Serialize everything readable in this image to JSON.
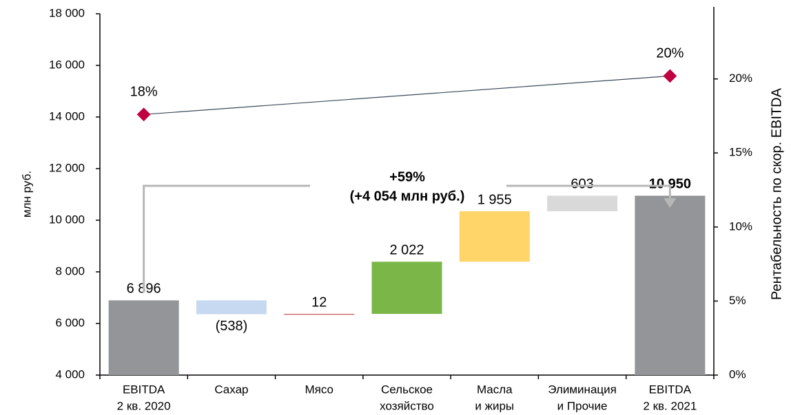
{
  "chart_data": {
    "type": "waterfall",
    "y_label": "млн руб.",
    "y2_label": "Рентабельность по скор. EBITDA",
    "categories": [
      [
        "EBITDA",
        "2 кв. 2020"
      ],
      [
        "Сахар"
      ],
      [
        "Мясо"
      ],
      [
        "Сельское",
        "хозяйство"
      ],
      [
        "Масла",
        "и жиры"
      ],
      [
        "Элиминация",
        "и Прочие"
      ],
      [
        "EBITDA",
        "2 кв. 2021"
      ]
    ],
    "values": [
      6896,
      -538,
      12,
      2022,
      1955,
      603,
      10950
    ],
    "value_labels": [
      "6 896",
      "(538)",
      "12",
      "2 022",
      "1 955",
      "603",
      "10 950"
    ],
    "totals": [
      true,
      false,
      false,
      false,
      false,
      false,
      true
    ],
    "colors": [
      "#939598",
      "#c6d9f0",
      "#c0504d",
      "#7ab648",
      "#ffd56a",
      "#d9d9d9",
      "#939598"
    ],
    "negative_label_color": "#c0504d",
    "ylim": [
      4000,
      18000
    ],
    "yticks": [
      {
        "value": 4000,
        "label": "4 000"
      },
      {
        "value": 6000,
        "label": "6 000"
      },
      {
        "value": 8000,
        "label": "8 000"
      },
      {
        "value": 10000,
        "label": "10 000"
      },
      {
        "value": 12000,
        "label": "12 000"
      },
      {
        "value": 14000,
        "label": "14 000"
      },
      {
        "value": 16000,
        "label": "16 000"
      },
      {
        "value": 18000,
        "label": "18 000"
      }
    ],
    "y2lim": [
      0,
      24.4
    ],
    "y2ticks": [
      {
        "value": 0,
        "label": "0%"
      },
      {
        "value": 5,
        "label": "5%"
      },
      {
        "value": 10,
        "label": "10%"
      },
      {
        "value": 15,
        "label": "15%"
      },
      {
        "value": 20,
        "label": "20%"
      }
    ],
    "margin": {
      "axis": "y2",
      "color": "#c00040",
      "line_color": "#3a4a5a",
      "values": [
        17.6,
        20.2
      ],
      "value_labels": [
        "18%",
        "20%"
      ]
    },
    "annotation": [
      "+59%",
      "(+4 054 млн руб.)"
    ]
  }
}
